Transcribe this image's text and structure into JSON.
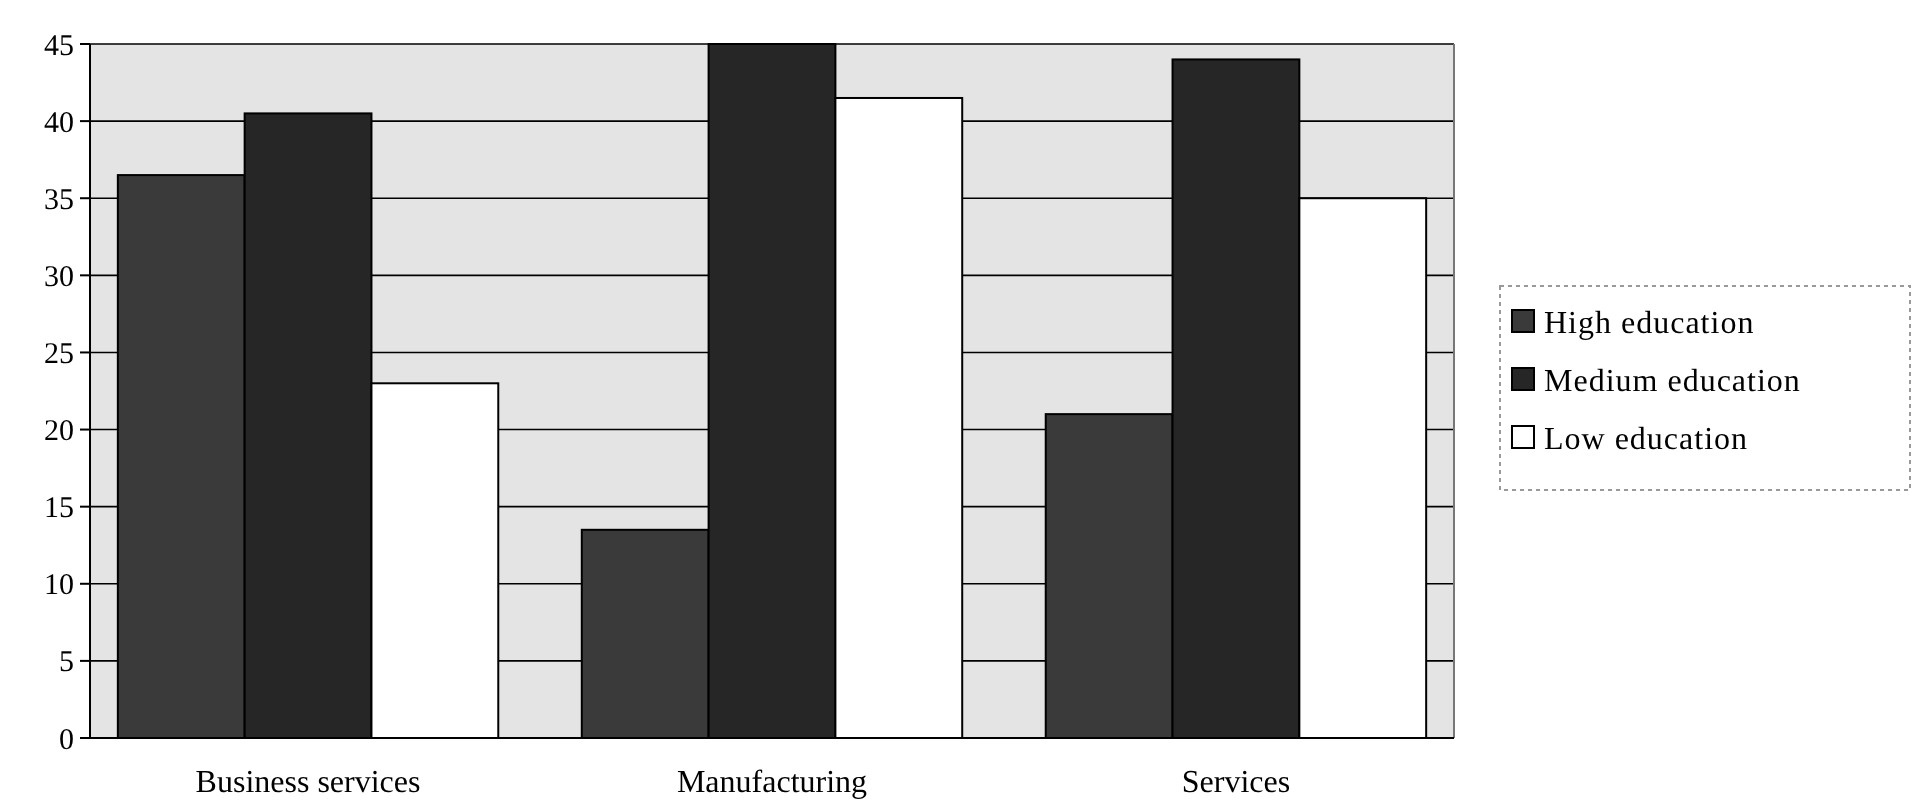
{
  "chart_data": {
    "type": "bar",
    "categories": [
      "Business services",
      "Manufacturing",
      "Services"
    ],
    "series": [
      {
        "name": "High education",
        "color": "#3a3a3a",
        "values": [
          36.5,
          13.5,
          21
        ]
      },
      {
        "name": "Medium education",
        "color": "#262626",
        "values": [
          40.5,
          45,
          44
        ]
      },
      {
        "name": "Low education",
        "color": "#ffffff",
        "values": [
          23,
          41.5,
          35
        ]
      }
    ],
    "ylim": [
      0,
      45
    ],
    "yticks": [
      0,
      5,
      10,
      15,
      20,
      25,
      30,
      35,
      40,
      45
    ],
    "grid": "y",
    "legend": "right"
  }
}
